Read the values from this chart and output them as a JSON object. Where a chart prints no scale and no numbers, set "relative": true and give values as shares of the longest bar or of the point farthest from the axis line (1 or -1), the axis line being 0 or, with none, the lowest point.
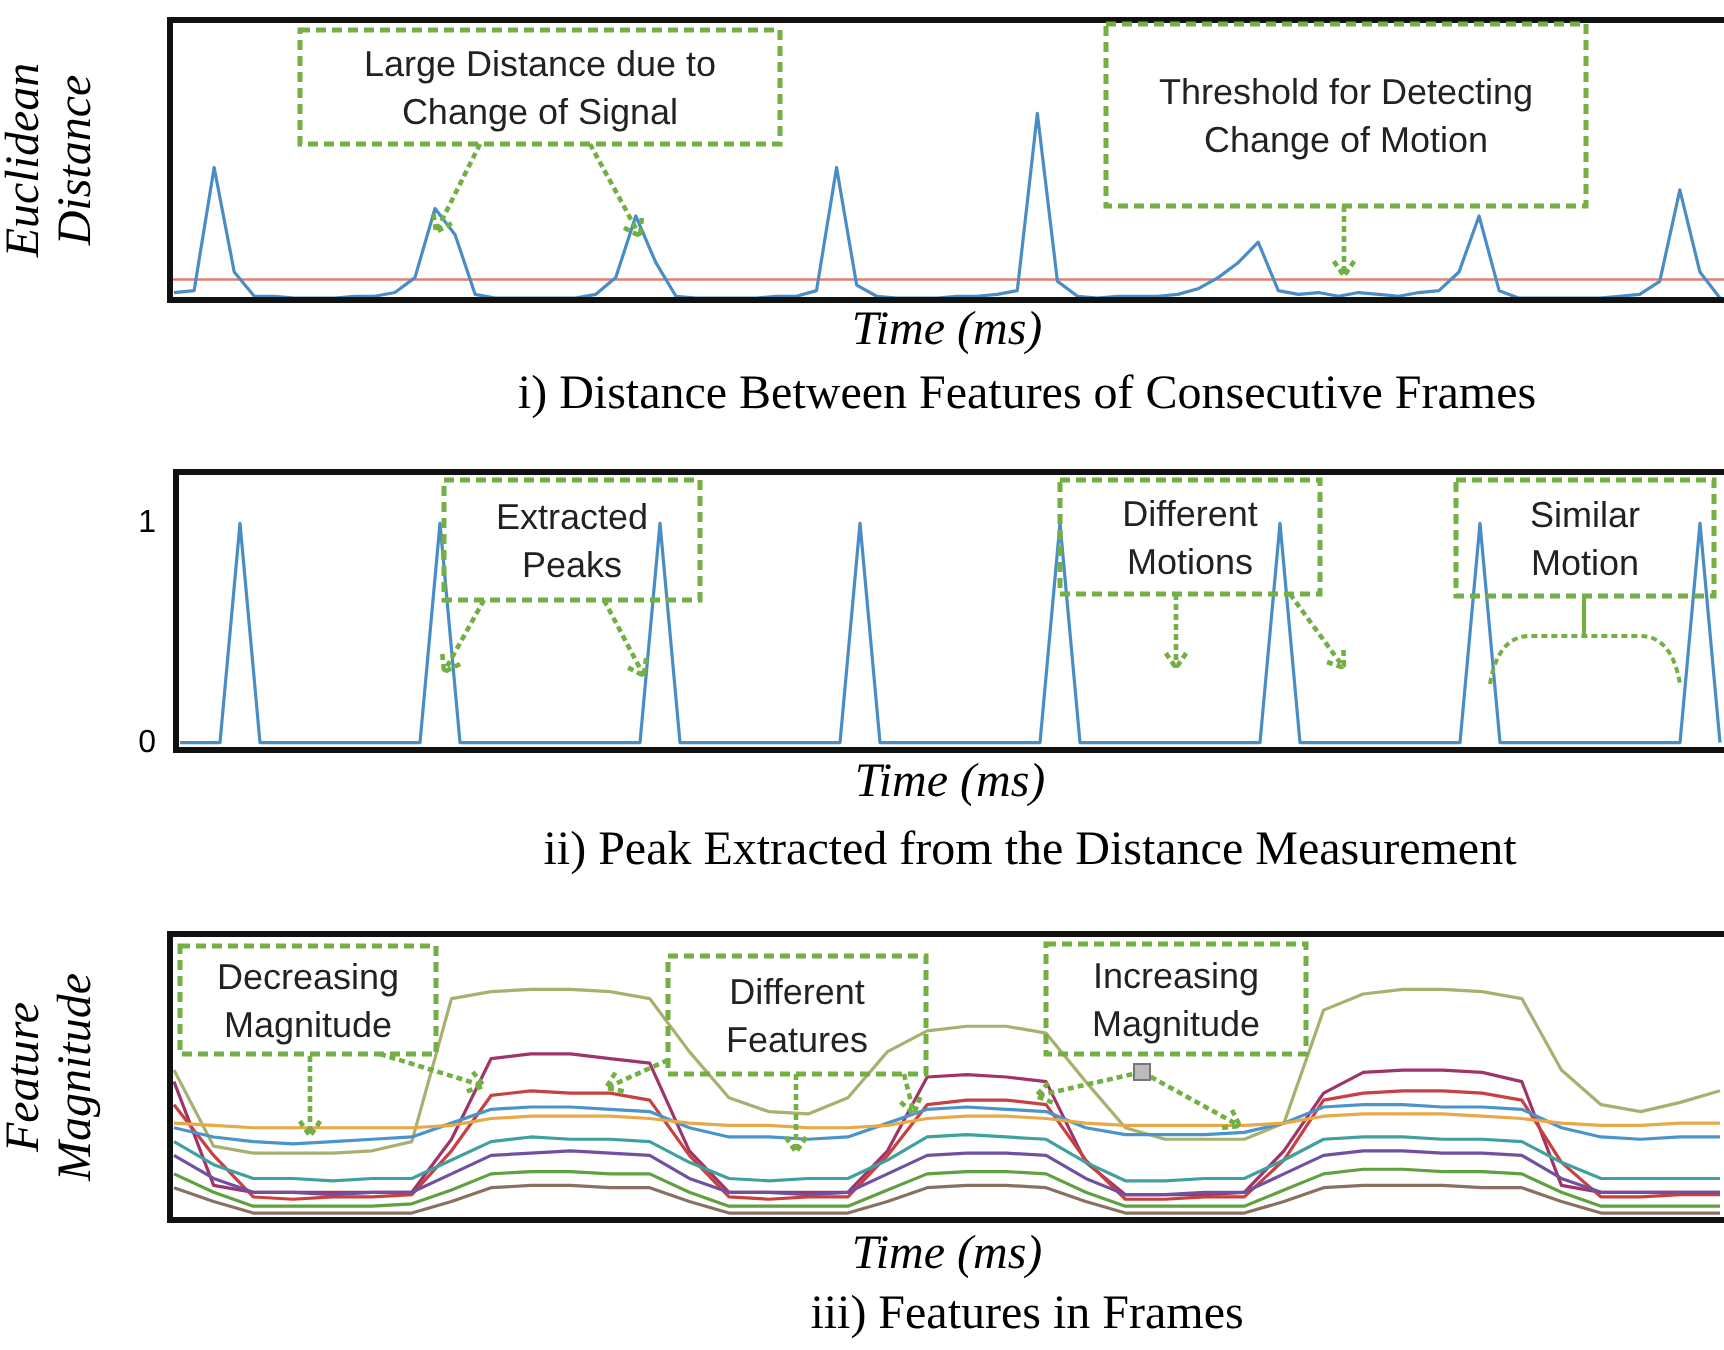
{
  "chart_data": [
    {
      "type": "line",
      "relative": true,
      "tick_labels": false,
      "title": "i) Distance Between Features of Consecutive Frames",
      "xlabel": "Time (ms)",
      "ylabel": "Euclidean Distance",
      "annotations": [
        "Large Distance due to Change of Signal",
        "Threshold for Detecting Change of Motion"
      ],
      "ref_lines": [
        {
          "axis": "y",
          "value": 0.11,
          "color": "#e08070"
        }
      ],
      "categories": [
        null,
        null,
        null,
        null,
        null,
        null,
        null,
        null,
        null,
        null,
        null,
        null,
        null,
        null,
        null,
        null,
        null,
        null,
        null,
        null,
        null,
        null,
        null,
        null,
        null,
        null,
        null,
        null,
        null,
        null,
        null,
        null,
        null,
        null,
        null,
        null,
        null,
        null,
        null,
        null,
        null,
        null,
        null,
        null,
        null,
        null,
        null,
        null,
        null,
        null,
        null,
        null,
        null,
        null,
        null,
        null,
        null,
        null,
        null,
        null,
        null,
        null,
        null,
        null,
        null,
        null,
        null,
        null,
        null,
        null,
        null,
        null,
        null,
        null,
        null,
        null,
        null,
        null
      ],
      "series": [
        {
          "color": "#4a8cc4",
          "values": [
            0.04,
            0.05,
            0.71,
            0.15,
            0.02,
            0.02,
            0.01,
            0.01,
            0.01,
            0.02,
            0.02,
            0.04,
            0.12,
            0.49,
            0.35,
            0.03,
            0.01,
            0.01,
            0.01,
            0.01,
            0.01,
            0.03,
            0.12,
            0.45,
            0.2,
            0.02,
            0.01,
            0.01,
            0.01,
            0.01,
            0.02,
            0.02,
            0.05,
            0.71,
            0.08,
            0.02,
            0.01,
            0.01,
            0.01,
            0.02,
            0.02,
            0.03,
            0.05,
            1,
            0.1,
            0.02,
            0.01,
            0.02,
            0.02,
            0.02,
            0.03,
            0.06,
            0.12,
            0.2,
            0.31,
            0.05,
            0.03,
            0.04,
            0.02,
            0.04,
            0.03,
            0.02,
            0.04,
            0.05,
            0.15,
            0.45,
            0.05,
            0.01,
            0.01,
            0.01,
            0.01,
            0.01,
            0.02,
            0.03,
            0.1,
            0.59,
            0.15,
            0.01
          ]
        }
      ]
    },
    {
      "type": "line",
      "tick_labels": "y",
      "title": "ii) Peak Extracted from the Distance Measurement",
      "xlabel": "Time (ms)",
      "ylim": [
        -0.02,
        1.22
      ],
      "yticks": [
        0,
        1
      ],
      "annotations": [
        "Extracted Peaks",
        "Different Motions",
        "Similar Motion"
      ],
      "categories": [
        null,
        null,
        null,
        null,
        null,
        null,
        null,
        null,
        null,
        null,
        null,
        null,
        null,
        null,
        null,
        null,
        null,
        null,
        null,
        null,
        null,
        null,
        null,
        null,
        null,
        null,
        null,
        null,
        null,
        null,
        null,
        null,
        null,
        null,
        null,
        null,
        null,
        null,
        null,
        null,
        null,
        null,
        null,
        null,
        null,
        null,
        null,
        null,
        null,
        null,
        null,
        null,
        null,
        null,
        null,
        null,
        null,
        null,
        null,
        null,
        null,
        null,
        null,
        null,
        null,
        null,
        null,
        null,
        null,
        null,
        null,
        null,
        null,
        null,
        null,
        null,
        null,
        null
      ],
      "series": [
        {
          "color": "#4a8cc4",
          "values": [
            0,
            0,
            0,
            1,
            0,
            0,
            0,
            0,
            0,
            0,
            0,
            0,
            0,
            1,
            0,
            0,
            0,
            0,
            0,
            0,
            0,
            0,
            0,
            0,
            1,
            0,
            0,
            0,
            0,
            0,
            0,
            0,
            0,
            0,
            1,
            0,
            0,
            0,
            0,
            0,
            0,
            0,
            0,
            0,
            1,
            0,
            0,
            0,
            0,
            0,
            0,
            0,
            0,
            0,
            0,
            1,
            0,
            0,
            0,
            0,
            0,
            0,
            0,
            0,
            0,
            1,
            0,
            0,
            0,
            0,
            0,
            0,
            0,
            0,
            0,
            0,
            1,
            0
          ]
        }
      ]
    },
    {
      "type": "line",
      "relative": true,
      "tick_labels": false,
      "title": "iii) Features in Frames",
      "xlabel": "Time (ms)",
      "ylabel": "Feature Magnitude",
      "annotations": [
        "Decreasing Magnitude",
        "Different Features",
        "Increasing Magnitude"
      ],
      "categories": [
        null,
        null,
        null,
        null,
        null,
        null,
        null,
        null,
        null,
        null,
        null,
        null,
        null,
        null,
        null,
        null,
        null,
        null,
        null,
        null,
        null,
        null,
        null,
        null,
        null,
        null,
        null,
        null,
        null,
        null,
        null,
        null,
        null,
        null,
        null,
        null,
        null,
        null,
        null,
        null
      ],
      "series": [
        {
          "color": "#a8b070",
          "values": [
            0.65,
            0.32,
            0.29,
            0.29,
            0.29,
            0.3,
            0.34,
            0.96,
            0.99,
            1,
            1,
            0.99,
            0.96,
            0.73,
            0.53,
            0.47,
            0.46,
            0.53,
            0.73,
            0.82,
            0.84,
            0.84,
            0.81,
            0.6,
            0.4,
            0.35,
            0.35,
            0.35,
            0.42,
            0.91,
            0.98,
            1,
            1,
            0.99,
            0.96,
            0.65,
            0.5,
            0.47,
            0.51,
            0.56
          ]
        },
        {
          "color": "#a03468",
          "values": [
            0.6,
            0.15,
            0.12,
            0.12,
            0.12,
            0.12,
            0.12,
            0.35,
            0.7,
            0.72,
            0.72,
            0.7,
            0.68,
            0.3,
            0.12,
            0.12,
            0.12,
            0.12,
            0.3,
            0.62,
            0.63,
            0.62,
            0.6,
            0.25,
            0.11,
            0.11,
            0.11,
            0.12,
            0.3,
            0.55,
            0.64,
            0.65,
            0.65,
            0.64,
            0.6,
            0.15,
            0.12,
            0.12,
            0.12,
            0.12
          ]
        },
        {
          "color": "#c84040",
          "values": [
            0.5,
            0.28,
            0.1,
            0.09,
            0.1,
            0.1,
            0.11,
            0.3,
            0.54,
            0.56,
            0.55,
            0.55,
            0.52,
            0.28,
            0.1,
            0.09,
            0.1,
            0.1,
            0.28,
            0.5,
            0.52,
            0.52,
            0.5,
            0.26,
            0.09,
            0.09,
            0.1,
            0.1,
            0.26,
            0.52,
            0.55,
            0.56,
            0.56,
            0.55,
            0.52,
            0.25,
            0.1,
            0.1,
            0.11,
            0.11
          ]
        },
        {
          "color": "#4a94cc",
          "values": [
            0.4,
            0.36,
            0.34,
            0.33,
            0.34,
            0.35,
            0.36,
            0.42,
            0.48,
            0.49,
            0.49,
            0.48,
            0.47,
            0.4,
            0.36,
            0.36,
            0.35,
            0.36,
            0.42,
            0.48,
            0.49,
            0.48,
            0.47,
            0.4,
            0.37,
            0.37,
            0.37,
            0.38,
            0.42,
            0.49,
            0.5,
            0.5,
            0.49,
            0.49,
            0.48,
            0.4,
            0.36,
            0.35,
            0.36,
            0.36
          ]
        },
        {
          "color": "#e8a848",
          "values": [
            0.42,
            0.41,
            0.4,
            0.4,
            0.4,
            0.4,
            0.4,
            0.41,
            0.44,
            0.45,
            0.45,
            0.45,
            0.44,
            0.42,
            0.41,
            0.41,
            0.4,
            0.4,
            0.41,
            0.44,
            0.45,
            0.45,
            0.44,
            0.42,
            0.41,
            0.41,
            0.41,
            0.41,
            0.42,
            0.45,
            0.46,
            0.46,
            0.46,
            0.45,
            0.44,
            0.42,
            0.41,
            0.41,
            0.42,
            0.42
          ]
        },
        {
          "color": "#40a0a0",
          "values": [
            0.34,
            0.24,
            0.18,
            0.18,
            0.17,
            0.18,
            0.18,
            0.26,
            0.34,
            0.36,
            0.35,
            0.35,
            0.34,
            0.25,
            0.18,
            0.17,
            0.18,
            0.18,
            0.26,
            0.36,
            0.37,
            0.36,
            0.35,
            0.25,
            0.17,
            0.17,
            0.18,
            0.18,
            0.26,
            0.35,
            0.36,
            0.36,
            0.35,
            0.35,
            0.34,
            0.25,
            0.18,
            0.18,
            0.18,
            0.18
          ]
        },
        {
          "color": "#7050a0",
          "values": [
            0.28,
            0.18,
            0.12,
            0.12,
            0.11,
            0.12,
            0.12,
            0.2,
            0.28,
            0.29,
            0.3,
            0.29,
            0.28,
            0.18,
            0.12,
            0.12,
            0.11,
            0.12,
            0.2,
            0.28,
            0.29,
            0.29,
            0.28,
            0.18,
            0.11,
            0.11,
            0.12,
            0.12,
            0.2,
            0.28,
            0.3,
            0.3,
            0.29,
            0.29,
            0.28,
            0.18,
            0.12,
            0.12,
            0.12,
            0.12
          ]
        },
        {
          "color": "#60a040",
          "values": [
            0.2,
            0.12,
            0.06,
            0.06,
            0.06,
            0.06,
            0.07,
            0.13,
            0.2,
            0.21,
            0.21,
            0.2,
            0.2,
            0.12,
            0.06,
            0.06,
            0.06,
            0.06,
            0.13,
            0.2,
            0.21,
            0.21,
            0.2,
            0.12,
            0.06,
            0.06,
            0.06,
            0.06,
            0.13,
            0.2,
            0.22,
            0.22,
            0.21,
            0.21,
            0.2,
            0.12,
            0.06,
            0.06,
            0.06,
            0.06
          ]
        },
        {
          "color": "#8a7060",
          "values": [
            0.14,
            0.08,
            0.03,
            0.03,
            0.03,
            0.03,
            0.03,
            0.08,
            0.14,
            0.15,
            0.15,
            0.14,
            0.14,
            0.08,
            0.03,
            0.03,
            0.03,
            0.03,
            0.08,
            0.14,
            0.15,
            0.15,
            0.14,
            0.08,
            0.03,
            0.03,
            0.03,
            0.03,
            0.08,
            0.14,
            0.15,
            0.15,
            0.15,
            0.14,
            0.14,
            0.08,
            0.03,
            0.03,
            0.03,
            0.03
          ]
        }
      ]
    }
  ]
}
